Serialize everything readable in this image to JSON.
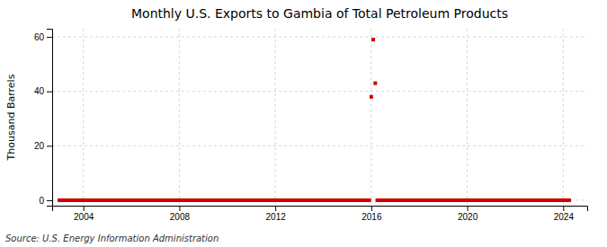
{
  "chart_data": {
    "type": "scatter",
    "title": "Monthly U.S. Exports to Gambia of Total Petroleum Products",
    "ylabel": "Thousand Barrels",
    "source": "Source: U.S. Energy Information Administration",
    "color": "#cc0000",
    "marker": "square",
    "grid": true,
    "xlim": [
      2002.7,
      2025.0
    ],
    "ylim": [
      -2,
      63
    ],
    "xticks": [
      2004,
      2008,
      2012,
      2016,
      2020,
      2024
    ],
    "yticks": [
      0,
      20,
      40,
      60
    ],
    "x": [
      2003,
      2003.0833333333333,
      2003.1666666666667,
      2003.25,
      2003.3333333333333,
      2003.4166666666667,
      2003.5,
      2003.5833333333333,
      2003.6666666666667,
      2003.75,
      2003.8333333333333,
      2003.9166666666667,
      2004,
      2004.0833333333333,
      2004.1666666666667,
      2004.25,
      2004.3333333333333,
      2004.4166666666667,
      2004.5,
      2004.5833333333333,
      2004.6666666666667,
      2004.75,
      2004.8333333333333,
      2004.9166666666667,
      2005,
      2005.0833333333333,
      2005.1666666666667,
      2005.25,
      2005.3333333333333,
      2005.4166666666667,
      2005.5,
      2005.5833333333333,
      2005.6666666666667,
      2005.75,
      2005.8333333333333,
      2005.9166666666667,
      2006,
      2006.0833333333333,
      2006.1666666666667,
      2006.25,
      2006.3333333333333,
      2006.4166666666667,
      2006.5,
      2006.5833333333333,
      2006.6666666666667,
      2006.75,
      2006.8333333333333,
      2006.9166666666667,
      2007,
      2007.0833333333333,
      2007.1666666666667,
      2007.25,
      2007.3333333333333,
      2007.4166666666667,
      2007.5,
      2007.5833333333333,
      2007.6666666666667,
      2007.75,
      2007.8333333333333,
      2007.9166666666667,
      2008,
      2008.0833333333333,
      2008.1666666666667,
      2008.25,
      2008.3333333333333,
      2008.4166666666667,
      2008.5,
      2008.5833333333333,
      2008.6666666666667,
      2008.75,
      2008.8333333333333,
      2008.9166666666667,
      2009,
      2009.0833333333333,
      2009.1666666666667,
      2009.25,
      2009.3333333333333,
      2009.4166666666667,
      2009.5,
      2009.5833333333333,
      2009.6666666666667,
      2009.75,
      2009.8333333333333,
      2009.9166666666667,
      2010,
      2010.0833333333333,
      2010.1666666666667,
      2010.25,
      2010.3333333333333,
      2010.4166666666667,
      2010.5,
      2010.5833333333333,
      2010.6666666666667,
      2010.75,
      2010.8333333333333,
      2010.9166666666667,
      2011,
      2011.0833333333333,
      2011.1666666666667,
      2011.25,
      2011.3333333333333,
      2011.4166666666667,
      2011.5,
      2011.5833333333333,
      2011.6666666666667,
      2011.75,
      2011.8333333333333,
      2011.9166666666667,
      2012,
      2012.0833333333333,
      2012.1666666666667,
      2012.25,
      2012.3333333333333,
      2012.4166666666667,
      2012.5,
      2012.5833333333333,
      2012.6666666666667,
      2012.75,
      2012.8333333333333,
      2012.9166666666667,
      2013,
      2013.0833333333333,
      2013.1666666666667,
      2013.25,
      2013.3333333333333,
      2013.4166666666667,
      2013.5,
      2013.5833333333333,
      2013.6666666666667,
      2013.75,
      2013.8333333333333,
      2013.9166666666667,
      2014,
      2014.0833333333333,
      2014.1666666666667,
      2014.25,
      2014.3333333333333,
      2014.4166666666667,
      2014.5,
      2014.5833333333333,
      2014.6666666666667,
      2014.75,
      2014.8333333333333,
      2014.9166666666667,
      2015,
      2015.0833333333333,
      2015.1666666666667,
      2015.25,
      2015.3333333333333,
      2015.4166666666667,
      2015.5,
      2015.5833333333333,
      2015.6666666666667,
      2015.75,
      2015.8333333333333,
      2015.9166666666667,
      2016,
      2016.0833333333333,
      2016.1666666666667,
      2016.25,
      2016.3333333333333,
      2016.4166666666667,
      2016.5,
      2016.5833333333333,
      2016.6666666666667,
      2016.75,
      2016.8333333333333,
      2016.9166666666667,
      2017,
      2017.0833333333333,
      2017.1666666666667,
      2017.25,
      2017.3333333333333,
      2017.4166666666667,
      2017.5,
      2017.5833333333333,
      2017.6666666666667,
      2017.75,
      2017.8333333333333,
      2017.9166666666667,
      2018,
      2018.0833333333333,
      2018.1666666666667,
      2018.25,
      2018.3333333333333,
      2018.4166666666667,
      2018.5,
      2018.5833333333333,
      2018.6666666666667,
      2018.75,
      2018.8333333333333,
      2018.9166666666667,
      2019,
      2019.0833333333333,
      2019.1666666666667,
      2019.25,
      2019.3333333333333,
      2019.4166666666667,
      2019.5,
      2019.5833333333333,
      2019.6666666666667,
      2019.75,
      2019.8333333333333,
      2019.9166666666667,
      2020,
      2020.0833333333333,
      2020.1666666666667,
      2020.25,
      2020.3333333333333,
      2020.4166666666667,
      2020.5,
      2020.5833333333333,
      2020.6666666666667,
      2020.75,
      2020.8333333333333,
      2020.9166666666667,
      2021,
      2021.0833333333333,
      2021.1666666666667,
      2021.25,
      2021.3333333333333,
      2021.4166666666667,
      2021.5,
      2021.5833333333333,
      2021.6666666666667,
      2021.75,
      2021.8333333333333,
      2021.9166666666667,
      2022,
      2022.0833333333333,
      2022.1666666666667,
      2022.25,
      2022.3333333333333,
      2022.4166666666667,
      2022.5,
      2022.5833333333333,
      2022.6666666666667,
      2022.75,
      2022.8333333333333,
      2022.9166666666667,
      2023,
      2023.0833333333333,
      2023.1666666666667,
      2023.25,
      2023.3333333333333,
      2023.4166666666667,
      2023.5,
      2023.5833333333333,
      2023.6666666666667,
      2023.75,
      2023.8333333333333,
      2023.9166666666667,
      2024,
      2024.0833333333333,
      2024.1666666666667,
      2024.25
    ],
    "values": [
      0,
      0,
      0,
      0,
      0,
      0,
      0,
      0,
      0,
      0,
      0,
      0,
      0,
      0,
      0,
      0,
      0,
      0,
      0,
      0,
      0,
      0,
      0,
      0,
      0,
      0,
      0,
      0,
      0,
      0,
      0,
      0,
      0,
      0,
      0,
      0,
      0,
      0,
      0,
      0,
      0,
      0,
      0,
      0,
      0,
      0,
      0,
      0,
      0,
      0,
      0,
      0,
      0,
      0,
      0,
      0,
      0,
      0,
      0,
      0,
      0,
      0,
      0,
      0,
      0,
      0,
      0,
      0,
      0,
      0,
      0,
      0,
      0,
      0,
      0,
      0,
      0,
      0,
      0,
      0,
      0,
      0,
      0,
      0,
      0,
      0,
      0,
      0,
      0,
      0,
      0,
      0,
      0,
      0,
      0,
      0,
      0,
      0,
      0,
      0,
      0,
      0,
      0,
      0,
      0,
      0,
      0,
      0,
      0,
      0,
      0,
      0,
      0,
      0,
      0,
      0,
      0,
      0,
      0,
      0,
      0,
      0,
      0,
      0,
      0,
      0,
      0,
      0,
      0,
      0,
      0,
      0,
      0,
      0,
      0,
      0,
      0,
      0,
      0,
      0,
      0,
      0,
      0,
      0,
      0,
      0,
      0,
      0,
      0,
      0,
      0,
      0,
      0,
      0,
      0,
      0,
      38,
      59,
      43,
      0,
      0,
      0,
      0,
      0,
      0,
      0,
      0,
      0,
      0,
      0,
      0,
      0,
      0,
      0,
      0,
      0,
      0,
      0,
      0,
      0,
      0,
      0,
      0,
      0,
      0,
      0,
      0,
      0,
      0,
      0,
      0,
      0,
      0,
      0,
      0,
      0,
      0,
      0,
      0,
      0,
      0,
      0,
      0,
      0,
      0,
      0,
      0,
      0,
      0,
      0,
      0,
      0,
      0,
      0,
      0,
      0,
      0,
      0,
      0,
      0,
      0,
      0,
      0,
      0,
      0,
      0,
      0,
      0,
      0,
      0,
      0,
      0,
      0,
      0,
      0,
      0,
      0,
      0,
      0,
      0,
      0,
      0,
      0,
      0,
      0,
      0,
      0,
      0,
      0,
      0,
      0,
      0,
      0,
      0,
      0,
      0
    ]
  }
}
